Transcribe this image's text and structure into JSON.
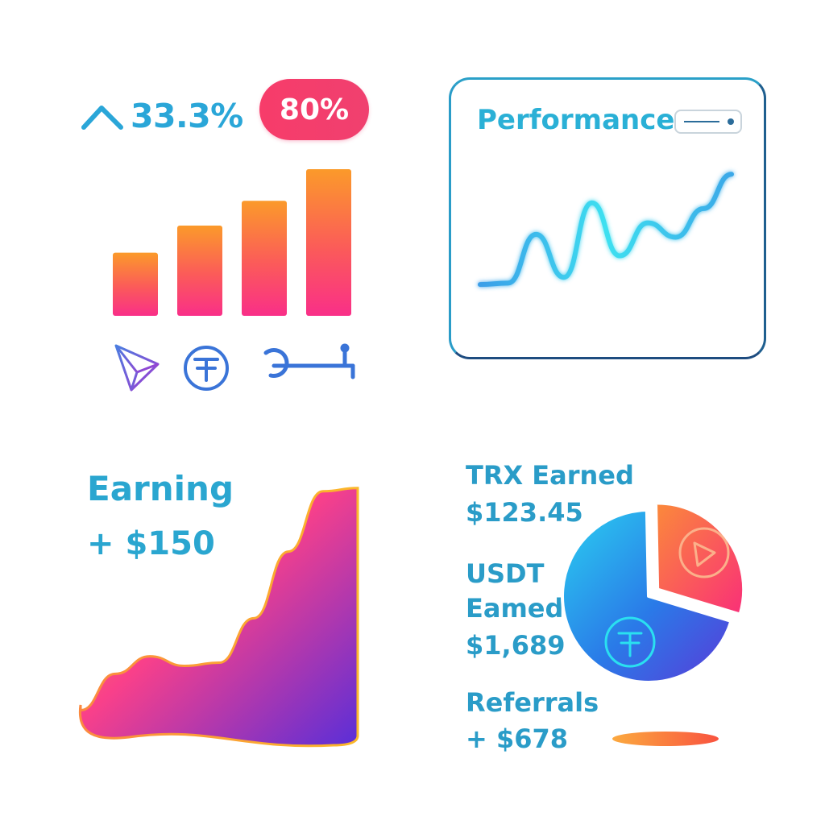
{
  "top_left": {
    "change_text": "33.3%",
    "badge_text": "80%",
    "icons": [
      "tron-icon",
      "tether-icon",
      "tool-icon"
    ]
  },
  "performance": {
    "title": "Performance"
  },
  "earning": {
    "title": "Earning",
    "value": "+ $150"
  },
  "stats": {
    "trx_label": "TRX Earned",
    "trx_value": "$123.45",
    "usdt_label_1": "USDT",
    "usdt_label_2": "Eamed",
    "usdt_value": "$1,689",
    "referrals_label": "Referrals",
    "referrals_value": "+ $678"
  },
  "colors": {
    "accent_blue": "#2aa6d8",
    "pink": "#f73c6a",
    "orange": "#fb9a2a",
    "purple": "#6a2ed8"
  },
  "chart_data": [
    {
      "type": "bar",
      "categories": [
        "",
        "",
        "",
        ""
      ],
      "values": [
        28,
        40,
        51,
        65
      ],
      "ylim": [
        0,
        70
      ]
    },
    {
      "type": "line",
      "title": "Performance",
      "x": [
        0,
        1,
        2,
        3,
        4,
        5,
        6,
        7,
        8,
        9
      ],
      "values": [
        5,
        6,
        40,
        10,
        62,
        25,
        48,
        38,
        58,
        82
      ],
      "ylim": [
        0,
        90
      ]
    },
    {
      "type": "area",
      "title": "Earning",
      "x": [
        0,
        1,
        2,
        3,
        4,
        5,
        6,
        7,
        8
      ],
      "values": [
        22,
        45,
        56,
        50,
        52,
        80,
        122,
        160,
        162
      ],
      "ylim": [
        0,
        170
      ]
    },
    {
      "type": "pie",
      "values": [
        30,
        70
      ],
      "labels": [
        "TRX",
        "USDT"
      ]
    }
  ]
}
